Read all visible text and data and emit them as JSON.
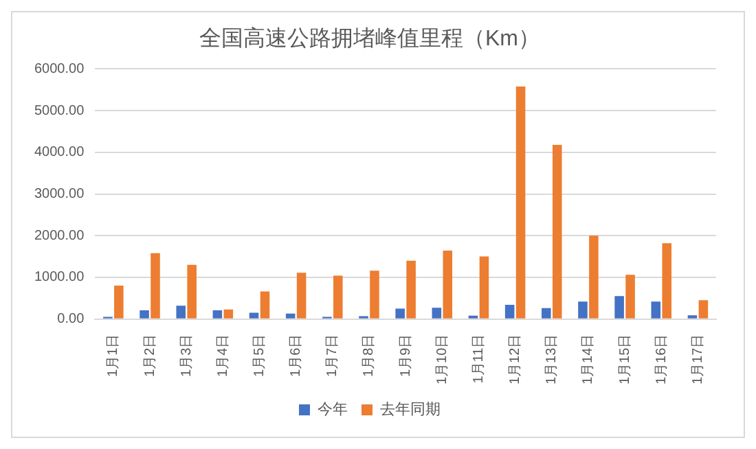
{
  "chart_data": {
    "type": "bar",
    "title": "全国高速公路拥堵峰值里程（Km）",
    "categories": [
      "1月1日",
      "1月2日",
      "1月3日",
      "1月4日",
      "1月5日",
      "1月6日",
      "1月7日",
      "1月8日",
      "1月9日",
      "1月10日",
      "1月11日",
      "1月12日",
      "1月13日",
      "1月14日",
      "1月15日",
      "1月16日",
      "1月17日"
    ],
    "series": [
      {
        "name": "今年",
        "color": "#4472c4",
        "values": [
          50,
          210,
          320,
          210,
          150,
          130,
          50,
          70,
          250,
          270,
          80,
          340,
          260,
          420,
          550,
          420,
          90
        ]
      },
      {
        "name": "去年同期",
        "color": "#ed7d31",
        "values": [
          800,
          1580,
          1300,
          230,
          660,
          1110,
          1040,
          1160,
          1400,
          1640,
          1500,
          5580,
          4180,
          2000,
          1060,
          1820,
          450
        ]
      }
    ],
    "ylim": [
      0,
      6000
    ],
    "yticks": [
      {
        "value": 0,
        "label": "0.00"
      },
      {
        "value": 1000,
        "label": "1000.00"
      },
      {
        "value": 2000,
        "label": "2000.00"
      },
      {
        "value": 3000,
        "label": "3000.00"
      },
      {
        "value": 4000,
        "label": "4000.00"
      },
      {
        "value": 5000,
        "label": "5000.00"
      },
      {
        "value": 6000,
        "label": "6000.00"
      }
    ],
    "grid": "y",
    "legend": "bottom"
  }
}
